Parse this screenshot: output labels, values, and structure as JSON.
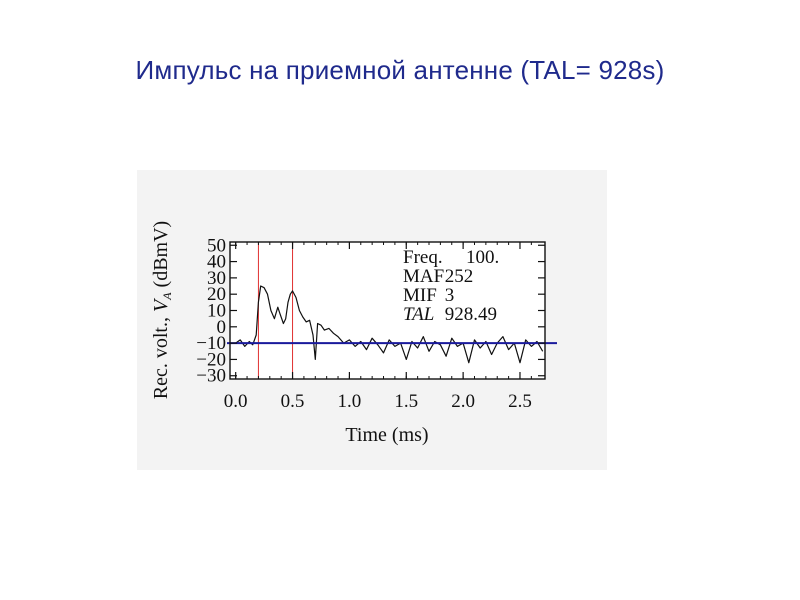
{
  "slide": {
    "title": "Импульс на приемной антенне (TAL= 928s)"
  },
  "chart_data": {
    "type": "line",
    "title": "",
    "xlabel": "Time (ms)",
    "ylabel_parts": [
      "Rec. volt., ",
      "V",
      "A",
      " (dBmV)"
    ],
    "xlim": [
      -0.05,
      2.72
    ],
    "ylim": [
      -32,
      52
    ],
    "x_ticks": [
      0.0,
      0.5,
      1.0,
      1.5,
      2.0,
      2.5
    ],
    "x_tick_labels": [
      "0.0",
      "0.5",
      "1.0",
      "1.5",
      "2.0",
      "2.5"
    ],
    "y_ticks": [
      50,
      40,
      30,
      20,
      10,
      0,
      -10,
      -20,
      -30
    ],
    "y_tick_labels": [
      "50",
      "40",
      "30",
      "20",
      "10",
      "0",
      "−10",
      "−20",
      "−30"
    ],
    "annotations": [
      {
        "label": "Freq.",
        "value": "100."
      },
      {
        "label": "MAF",
        "value": "252"
      },
      {
        "label": "MIF",
        "value": "3"
      },
      {
        "label": "TAL",
        "value": "928.49",
        "italic": true
      }
    ],
    "vertical_markers": [
      0.2,
      0.5
    ],
    "horizontal_reference": -10,
    "colors": {
      "signal": "#111111",
      "markers": "#e03030",
      "reference": "#1a1a9c",
      "axes": "#111111",
      "background": "#f3f3f3",
      "title": "#1f2a8c"
    },
    "series": [
      {
        "x": [
          0.0,
          0.04,
          0.08,
          0.12,
          0.15,
          0.18,
          0.2,
          0.22,
          0.25,
          0.28,
          0.31,
          0.34,
          0.37,
          0.39,
          0.42,
          0.44,
          0.46,
          0.48,
          0.5,
          0.53,
          0.56,
          0.59,
          0.62,
          0.65,
          0.68,
          0.7,
          0.72,
          0.75,
          0.78,
          0.82,
          0.86,
          0.9,
          0.95,
          1.0,
          1.05,
          1.1,
          1.15,
          1.2,
          1.25,
          1.3,
          1.35,
          1.4,
          1.45,
          1.5,
          1.55,
          1.6,
          1.65,
          1.7,
          1.75,
          1.8,
          1.85,
          1.9,
          1.95,
          2.0,
          2.05,
          2.1,
          2.15,
          2.2,
          2.25,
          2.3,
          2.35,
          2.4,
          2.45,
          2.5,
          2.55,
          2.6,
          2.65,
          2.7
        ],
        "y": [
          -10,
          -8,
          -12,
          -9,
          -11,
          -5,
          15,
          25,
          24,
          20,
          10,
          5,
          12,
          8,
          2,
          5,
          15,
          20,
          22,
          18,
          10,
          6,
          3,
          4,
          -5,
          -20,
          2,
          1,
          -2,
          -1,
          -4,
          -6,
          -10,
          -8,
          -12,
          -9,
          -14,
          -7,
          -11,
          -16,
          -8,
          -12,
          -10,
          -20,
          -9,
          -13,
          -6,
          -15,
          -9,
          -11,
          -18,
          -7,
          -12,
          -10,
          -22,
          -8,
          -13,
          -9,
          -17,
          -10,
          -6,
          -14,
          -10,
          -22,
          -8,
          -12,
          -9,
          -15
        ]
      }
    ]
  }
}
